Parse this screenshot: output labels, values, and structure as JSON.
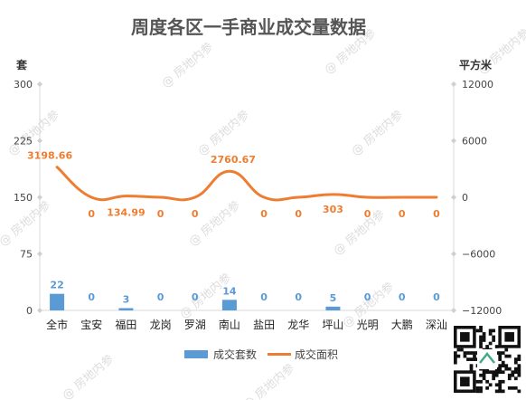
{
  "chart_data": {
    "type": "bar",
    "title": "周度各区一手商业成交量数据",
    "categories": [
      "全市",
      "宝安",
      "福田",
      "龙岗",
      "罗湖",
      "南山",
      "盐田",
      "龙华",
      "坪山",
      "光明",
      "大鹏",
      "深汕"
    ],
    "left_axis": {
      "unit": "套",
      "ticks": [
        "0",
        "75",
        "150",
        "225",
        "300"
      ],
      "range": [
        0,
        300
      ]
    },
    "right_axis": {
      "unit": "平方米",
      "ticks": [
        "-12000",
        "-6000",
        "0",
        "6000",
        "12000"
      ],
      "range": [
        -12000,
        12000
      ]
    },
    "series": [
      {
        "name": "成交套数",
        "type": "bar",
        "axis": "left",
        "color": "#5B9BD5",
        "values": [
          22,
          0,
          3,
          0,
          0,
          14,
          0,
          0,
          5,
          0,
          0,
          0
        ],
        "labels": [
          "22",
          "0",
          "3",
          "0",
          "0",
          "14",
          "0",
          "0",
          "5",
          "0",
          "0",
          "0"
        ]
      },
      {
        "name": "成交面积",
        "type": "line",
        "axis": "right",
        "color": "#ED7D31",
        "values": [
          3198.66,
          0,
          134.99,
          0,
          0,
          2760.67,
          0,
          0,
          303,
          0,
          0,
          0
        ],
        "labels": [
          "3198.66",
          "0",
          "134.99",
          "0",
          "0",
          "2760.67",
          "0",
          "0",
          "303",
          "0",
          "0",
          "0"
        ]
      }
    ],
    "legend": {
      "placement": "bottom",
      "items": [
        "成交套数",
        "成交面积"
      ]
    },
    "grid": false
  },
  "watermark": "@ 房地内参",
  "qr_icon": "qr-code-icon"
}
